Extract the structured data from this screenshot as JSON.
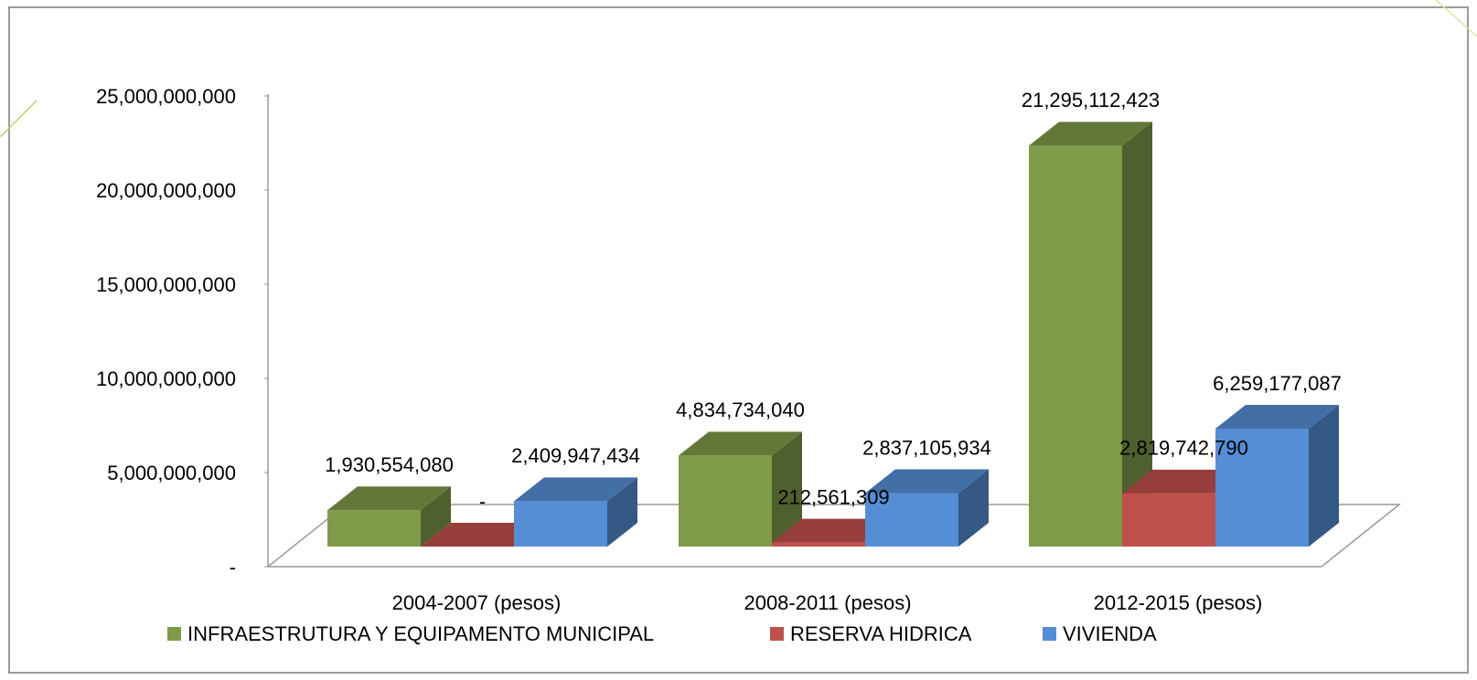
{
  "chart_data": {
    "type": "bar3d",
    "categories": [
      "2004-2007 (pesos)",
      "2008-2011 (pesos)",
      "2012-2015 (pesos)"
    ],
    "series": [
      {
        "name": "INFRAESTRUTURA Y EQUIPAMENTO MUNICIPAL",
        "color": "#7f9a48",
        "values": [
          1930554080,
          4834734040,
          21295112423
        ],
        "value_labels": [
          "1,930,554,080",
          "4,834,734,040",
          "21,295,112,423"
        ]
      },
      {
        "name": "RESERVA HIDRICA",
        "color": "#c0504d",
        "values": [
          0,
          212561309,
          2819742790
        ],
        "value_labels": [
          "-",
          "212,561,309",
          "2,819,742,790"
        ]
      },
      {
        "name": "VIVIENDA",
        "color": "#558ed5",
        "values": [
          2409947434,
          2837105934,
          6259177087
        ],
        "value_labels": [
          "2,409,947,434",
          "2,837,105,934",
          "6,259,177,087"
        ]
      }
    ],
    "ylim": [
      0,
      25000000000
    ],
    "yticks": [
      {
        "value": 0,
        "label": "-"
      },
      {
        "value": 5000000000,
        "label": "5,000,000,000"
      },
      {
        "value": 10000000000,
        "label": "10,000,000,000"
      },
      {
        "value": 15000000000,
        "label": "15,000,000,000"
      },
      {
        "value": 20000000000,
        "label": "20,000,000,000"
      },
      {
        "value": 25000000000,
        "label": "25,000,000,000"
      }
    ],
    "legend": "bottom"
  }
}
